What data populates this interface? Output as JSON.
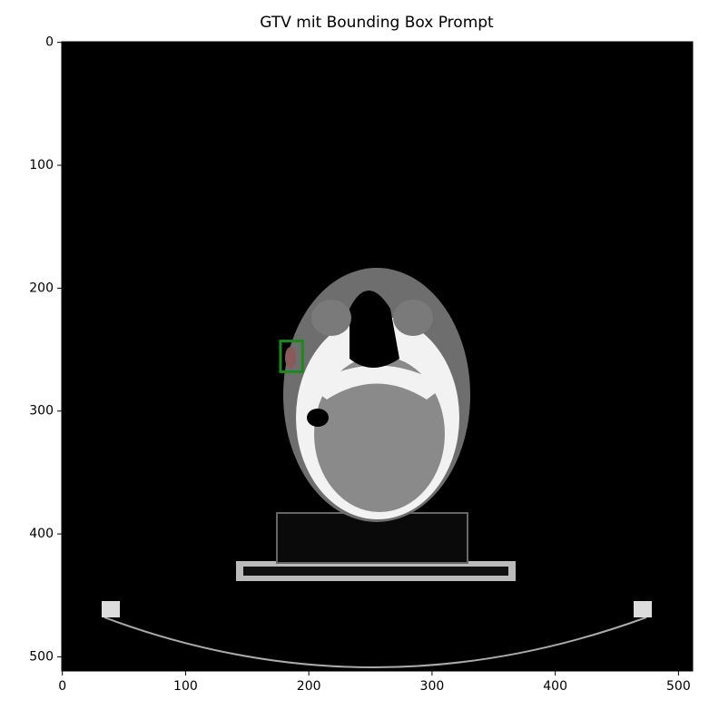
{
  "chart_data": {
    "type": "image",
    "title": "GTV mit Bounding Box Prompt",
    "xlim": [
      -0.5,
      511.5
    ],
    "ylim": [
      511.5,
      -0.5
    ],
    "xticks": [
      0,
      100,
      200,
      300,
      400,
      500
    ],
    "yticks": [
      0,
      100,
      200,
      300,
      400,
      500
    ],
    "bbox": {
      "x0": 177,
      "y0": 243,
      "x1": 195,
      "y1": 268,
      "color": "#1a8a1a"
    }
  }
}
